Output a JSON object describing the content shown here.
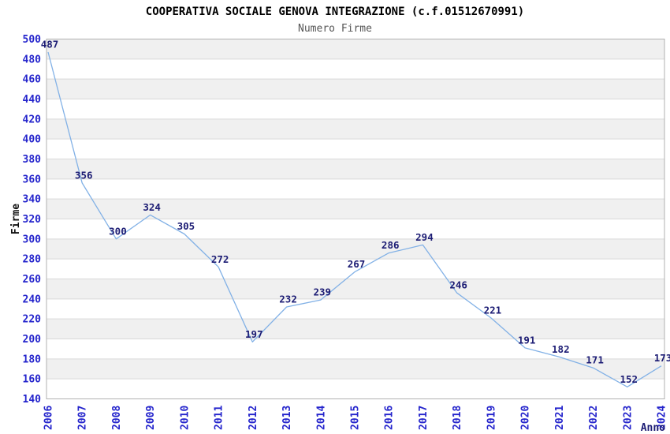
{
  "chart_data": {
    "type": "line",
    "title": "COOPERATIVA SOCIALE GENOVA INTEGRAZIONE (c.f.01512670991)",
    "subtitle": "Numero Firme",
    "xlabel": "Anno",
    "ylabel": "Firme",
    "x": [
      2006,
      2007,
      2008,
      2009,
      2010,
      2011,
      2012,
      2013,
      2014,
      2015,
      2016,
      2017,
      2018,
      2019,
      2020,
      2021,
      2022,
      2023,
      2024
    ],
    "values": [
      487,
      356,
      300,
      324,
      305,
      272,
      197,
      232,
      239,
      267,
      286,
      294,
      246,
      221,
      191,
      182,
      171,
      152,
      173
    ],
    "ylim": [
      140,
      500
    ],
    "ytick_step": 20,
    "grid": true,
    "legend_position": "none",
    "band_fill_alternating": true,
    "colors": {
      "line": "#82b1e6",
      "tick_label": "#2424cc",
      "data_label": "#1c1c74",
      "y_axis_title": "#111111",
      "x_axis_title": "#1c1c74",
      "band": "#f0f0f0",
      "gridline": "#d9d9d9",
      "plot_border": "#b0b0b0",
      "title": "#000000",
      "subtitle": "#555555",
      "background": "#ffffff"
    }
  }
}
